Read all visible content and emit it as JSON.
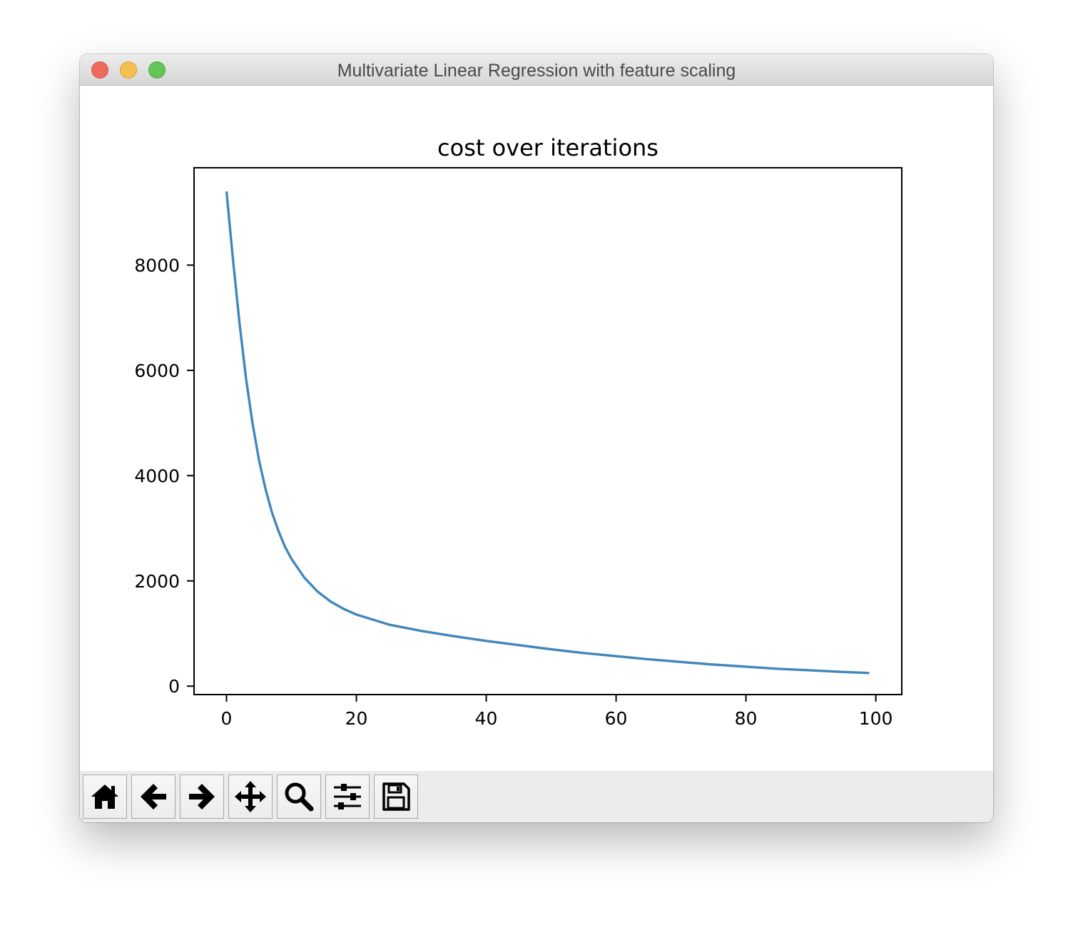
{
  "window": {
    "title": "Multivariate Linear Regression with feature scaling",
    "traffic_lights": [
      {
        "name": "close",
        "color": "#ed6a5e",
        "border": "#d2584d"
      },
      {
        "name": "minimize",
        "color": "#f5bf4f",
        "border": "#d7a241"
      },
      {
        "name": "zoom",
        "color": "#62c655",
        "border": "#52a842"
      }
    ]
  },
  "toolbar": {
    "buttons": [
      {
        "name": "home",
        "icon": "home-icon"
      },
      {
        "name": "back",
        "icon": "arrow-left-icon"
      },
      {
        "name": "forward",
        "icon": "arrow-right-icon"
      },
      {
        "name": "pan",
        "icon": "move-icon"
      },
      {
        "name": "zoom",
        "icon": "magnifier-icon"
      },
      {
        "name": "configure",
        "icon": "sliders-icon"
      },
      {
        "name": "save",
        "icon": "floppy-disk-icon"
      }
    ]
  },
  "chart_data": {
    "type": "line",
    "title": "cost over iterations",
    "xlabel": "",
    "ylabel": "",
    "xlim": [
      -5,
      104
    ],
    "ylim": [
      -160,
      9850
    ],
    "xticks": [
      0,
      20,
      40,
      60,
      80,
      100
    ],
    "yticks": [
      0,
      2000,
      4000,
      6000,
      8000
    ],
    "grid": false,
    "line_color": "#4187bb",
    "series": [
      {
        "x": [
          0,
          1,
          2,
          3,
          4,
          5,
          6,
          7,
          8,
          9,
          10,
          12,
          14,
          16,
          18,
          20,
          25,
          30,
          35,
          40,
          45,
          50,
          55,
          60,
          65,
          70,
          75,
          80,
          85,
          90,
          95,
          99
        ],
        "y": [
          9400,
          8100,
          6900,
          5850,
          5000,
          4300,
          3750,
          3300,
          2950,
          2650,
          2420,
          2060,
          1800,
          1610,
          1470,
          1360,
          1170,
          1050,
          950,
          860,
          780,
          700,
          630,
          570,
          510,
          460,
          410,
          370,
          330,
          300,
          270,
          250
        ]
      }
    ]
  }
}
